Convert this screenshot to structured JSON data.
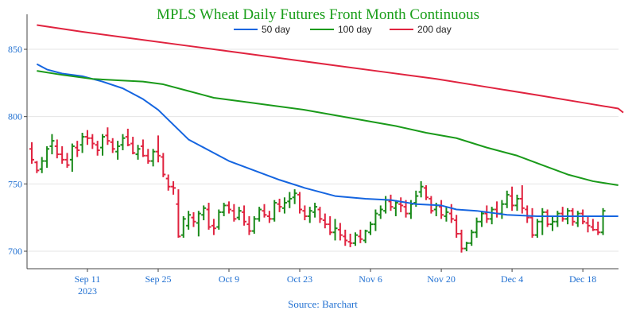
{
  "chart_data": {
    "type": "line",
    "title": "MPLS Wheat Daily Futures Front Month Continuous",
    "source": "Source: Barchart",
    "x_ticks": [
      {
        "label": "Sep 11",
        "sub": "2023",
        "day": 11
      },
      {
        "label": "Sep 25",
        "sub": "",
        "day": 25
      },
      {
        "label": "Oct 9",
        "sub": "",
        "day": 39
      },
      {
        "label": "Oct 23",
        "sub": "",
        "day": 53
      },
      {
        "label": "Nov 6",
        "sub": "",
        "day": 67
      },
      {
        "label": "Nov 20",
        "sub": "",
        "day": 81
      },
      {
        "label": "Dec 4",
        "sub": "",
        "day": 95
      },
      {
        "label": "Dec 18",
        "sub": "",
        "day": 109
      }
    ],
    "xlim": [
      0,
      117
    ],
    "y_ticks": [
      700,
      750,
      800,
      850
    ],
    "ylim": [
      687,
      876
    ],
    "legend": {
      "placement": "top-center"
    },
    "colors": {
      "title": "#1a9e1a",
      "axis_text": "#1f6fd1",
      "ma50": "#1565e0",
      "ma100": "#1a9a1a",
      "ma200": "#e0233f",
      "up": "#1a8a1a",
      "down": "#e0233f"
    },
    "series": [
      {
        "name": "50 day",
        "key": "ma50",
        "points": [
          [
            1,
            839
          ],
          [
            3,
            835
          ],
          [
            6,
            832
          ],
          [
            10,
            830
          ],
          [
            14,
            826
          ],
          [
            18,
            821
          ],
          [
            22,
            813
          ],
          [
            25,
            805
          ],
          [
            28,
            794
          ],
          [
            31,
            783
          ],
          [
            35,
            775
          ],
          [
            39,
            767
          ],
          [
            44,
            760
          ],
          [
            49,
            753
          ],
          [
            54,
            747
          ],
          [
            60,
            741
          ],
          [
            66,
            739
          ],
          [
            71,
            738
          ],
          [
            76,
            735
          ],
          [
            81,
            734
          ],
          [
            84,
            731
          ],
          [
            88,
            730
          ],
          [
            94,
            727
          ],
          [
            100,
            726
          ],
          [
            106,
            726
          ],
          [
            111,
            726
          ],
          [
            116,
            726
          ]
        ]
      },
      {
        "name": "100 day",
        "key": "ma100",
        "points": [
          [
            1,
            834
          ],
          [
            6,
            831
          ],
          [
            12,
            828
          ],
          [
            17,
            827
          ],
          [
            22,
            826
          ],
          [
            26,
            824
          ],
          [
            31,
            819
          ],
          [
            36,
            814
          ],
          [
            42,
            811
          ],
          [
            48,
            808
          ],
          [
            54,
            805
          ],
          [
            60,
            801
          ],
          [
            66,
            797
          ],
          [
            72,
            793
          ],
          [
            78,
            788
          ],
          [
            84,
            784
          ],
          [
            90,
            777
          ],
          [
            96,
            771
          ],
          [
            101,
            764
          ],
          [
            106,
            757
          ],
          [
            111,
            752
          ],
          [
            116,
            749
          ]
        ]
      },
      {
        "name": "200 day",
        "key": "ma200",
        "points": [
          [
            1,
            868
          ],
          [
            10,
            863
          ],
          [
            20,
            858
          ],
          [
            30,
            853
          ],
          [
            40,
            848
          ],
          [
            50,
            843
          ],
          [
            60,
            838
          ],
          [
            70,
            833
          ],
          [
            80,
            828
          ],
          [
            90,
            822
          ],
          [
            100,
            816
          ],
          [
            108,
            811
          ],
          [
            116,
            806
          ],
          [
            117,
            803
          ]
        ]
      }
    ],
    "ohlc_note": "daily OHLC bars: [day, open, high, low, close]",
    "ohlc": [
      [
        0,
        776,
        781,
        765,
        768
      ],
      [
        1,
        766,
        767,
        758,
        760
      ],
      [
        2,
        761,
        770,
        758,
        767
      ],
      [
        3,
        767,
        778,
        762,
        776
      ],
      [
        4,
        778,
        787,
        772,
        782
      ],
      [
        5,
        778,
        783,
        769,
        772
      ],
      [
        6,
        772,
        778,
        765,
        768
      ],
      [
        7,
        768,
        773,
        762,
        764
      ],
      [
        8,
        768,
        780,
        759,
        778
      ],
      [
        9,
        777,
        782,
        770,
        775
      ],
      [
        10,
        779,
        788,
        773,
        785
      ],
      [
        11,
        785,
        790,
        779,
        784
      ],
      [
        12,
        784,
        787,
        776,
        780
      ],
      [
        13,
        779,
        782,
        771,
        775
      ],
      [
        14,
        777,
        787,
        771,
        785
      ],
      [
        15,
        786,
        792,
        779,
        782
      ],
      [
        16,
        781,
        784,
        773,
        776
      ],
      [
        17,
        774,
        782,
        768,
        778
      ],
      [
        18,
        779,
        787,
        775,
        784
      ],
      [
        19,
        785,
        791,
        778,
        779
      ],
      [
        20,
        780,
        785,
        772,
        773
      ],
      [
        21,
        772,
        779,
        768,
        776
      ],
      [
        22,
        778,
        783,
        770,
        771
      ],
      [
        23,
        771,
        776,
        765,
        767
      ],
      [
        24,
        767,
        776,
        763,
        774
      ],
      [
        25,
        774,
        786,
        766,
        771
      ],
      [
        26,
        770,
        773,
        755,
        757
      ],
      [
        27,
        754,
        757,
        745,
        748
      ],
      [
        28,
        748,
        752,
        742,
        747
      ],
      [
        29,
        735,
        746,
        710,
        711
      ],
      [
        30,
        712,
        726,
        710,
        724
      ],
      [
        31,
        719,
        730,
        716,
        727
      ],
      [
        32,
        725,
        729,
        718,
        722
      ],
      [
        33,
        721,
        730,
        711,
        728
      ],
      [
        34,
        727,
        734,
        723,
        732
      ],
      [
        35,
        731,
        736,
        716,
        718
      ],
      [
        36,
        719,
        724,
        712,
        717
      ],
      [
        37,
        718,
        731,
        716,
        729
      ],
      [
        38,
        729,
        736,
        726,
        734
      ],
      [
        39,
        734,
        737,
        728,
        731
      ],
      [
        40,
        730,
        735,
        722,
        724
      ],
      [
        41,
        725,
        733,
        723,
        730
      ],
      [
        42,
        729,
        734,
        719,
        722
      ],
      [
        43,
        720,
        726,
        712,
        715
      ],
      [
        44,
        715,
        726,
        713,
        724
      ],
      [
        45,
        724,
        733,
        722,
        731
      ],
      [
        46,
        730,
        735,
        725,
        727
      ],
      [
        47,
        726,
        730,
        721,
        724
      ],
      [
        48,
        724,
        738,
        722,
        736
      ],
      [
        49,
        735,
        739,
        729,
        733
      ],
      [
        50,
        732,
        740,
        728,
        736
      ],
      [
        51,
        737,
        744,
        732,
        739
      ],
      [
        52,
        740,
        746,
        735,
        743
      ],
      [
        53,
        742,
        744,
        728,
        731
      ],
      [
        54,
        730,
        734,
        723,
        726
      ],
      [
        55,
        726,
        733,
        721,
        730
      ],
      [
        56,
        729,
        736,
        725,
        733
      ],
      [
        57,
        731,
        733,
        721,
        724
      ],
      [
        58,
        723,
        728,
        717,
        720
      ],
      [
        59,
        720,
        726,
        712,
        714
      ],
      [
        60,
        714,
        724,
        708,
        717
      ],
      [
        61,
        716,
        721,
        708,
        712
      ],
      [
        62,
        711,
        716,
        704,
        708
      ],
      [
        63,
        707,
        713,
        703,
        706
      ],
      [
        64,
        706,
        714,
        704,
        712
      ],
      [
        65,
        711,
        716,
        706,
        709
      ],
      [
        66,
        708,
        716,
        706,
        715
      ],
      [
        67,
        714,
        722,
        712,
        720
      ],
      [
        68,
        720,
        731,
        715,
        728
      ],
      [
        69,
        727,
        734,
        724,
        731
      ],
      [
        70,
        730,
        741,
        728,
        738
      ],
      [
        71,
        737,
        742,
        730,
        733
      ],
      [
        72,
        732,
        738,
        726,
        736
      ],
      [
        73,
        735,
        740,
        729,
        734
      ],
      [
        74,
        733,
        738,
        725,
        728
      ],
      [
        75,
        728,
        738,
        724,
        735
      ],
      [
        76,
        736,
        745,
        733,
        741
      ],
      [
        77,
        744,
        752,
        740,
        748
      ],
      [
        78,
        747,
        749,
        738,
        740
      ],
      [
        79,
        739,
        741,
        728,
        730
      ],
      [
        80,
        731,
        736,
        726,
        734
      ],
      [
        81,
        733,
        738,
        724,
        727
      ],
      [
        82,
        726,
        733,
        722,
        729
      ],
      [
        83,
        728,
        735,
        721,
        724
      ],
      [
        84,
        723,
        727,
        710,
        713
      ],
      [
        85,
        713,
        716,
        699,
        702
      ],
      [
        86,
        702,
        707,
        700,
        706
      ],
      [
        87,
        706,
        716,
        704,
        714
      ],
      [
        88,
        714,
        725,
        710,
        722
      ],
      [
        89,
        722,
        730,
        718,
        728
      ],
      [
        90,
        728,
        734,
        721,
        724
      ],
      [
        91,
        724,
        733,
        720,
        731
      ],
      [
        92,
        731,
        737,
        725,
        728
      ],
      [
        93,
        728,
        738,
        724,
        735
      ],
      [
        94,
        735,
        745,
        732,
        742
      ],
      [
        95,
        741,
        748,
        730,
        734
      ],
      [
        96,
        734,
        742,
        730,
        739
      ],
      [
        97,
        739,
        749,
        728,
        732
      ],
      [
        98,
        731,
        734,
        721,
        725
      ],
      [
        99,
        725,
        732,
        710,
        712
      ],
      [
        100,
        712,
        724,
        710,
        722
      ],
      [
        101,
        722,
        732,
        712,
        729
      ],
      [
        102,
        729,
        731,
        718,
        720
      ],
      [
        103,
        720,
        726,
        715,
        722
      ],
      [
        104,
        722,
        730,
        718,
        728
      ],
      [
        105,
        728,
        733,
        722,
        724
      ],
      [
        106,
        724,
        732,
        720,
        730
      ],
      [
        107,
        730,
        732,
        719,
        722
      ],
      [
        108,
        721,
        730,
        718,
        728
      ],
      [
        109,
        728,
        731,
        720,
        722
      ],
      [
        110,
        721,
        726,
        714,
        719
      ],
      [
        111,
        718,
        724,
        715,
        716
      ],
      [
        112,
        716,
        722,
        712,
        714
      ],
      [
        113,
        714,
        732,
        712,
        730
      ]
    ]
  }
}
